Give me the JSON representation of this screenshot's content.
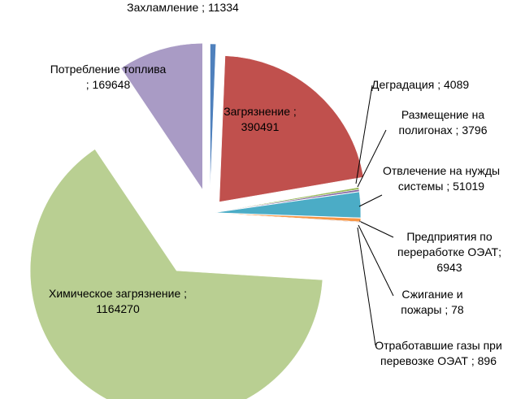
{
  "chart_data": {
    "type": "pie",
    "values": [
      11334,
      390491,
      4089,
      3796,
      51019,
      6943,
      78,
      896,
      1164270,
      169648
    ],
    "value_labels": [
      "Захламление ; 11334",
      "Загрязнение ; 390491",
      "Деградация ; 4089",
      "Размещение на полигонах ; 3796",
      "Отвлечение на нужды системы ; 51019",
      "Предприятия по переработке ОЭАТ; 6943",
      "Сжигание и пожары ; 78",
      "Отработавшие газы при перевозке ОЭАТ ; 896",
      "Химическое загрязнение ; 1164270",
      "Потребление топлива ; 169648"
    ],
    "colors": [
      "#4f81bd",
      "#c0504d",
      "#9bbb59",
      "#8064a2",
      "#4bacc6",
      "#f79646",
      "#2c4d75",
      "#772c2a",
      "#b9cf92",
      "#a99bc5"
    ]
  }
}
